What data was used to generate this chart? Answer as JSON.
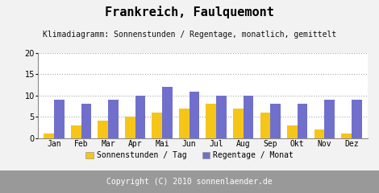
{
  "title": "Frankreich, Faulquemont",
  "subtitle": "Klimadiagramm: Sonnenstunden / Regentage, monatlich, gemittelt",
  "months": [
    "Jan",
    "Feb",
    "Mar",
    "Apr",
    "Mai",
    "Jun",
    "Jul",
    "Aug",
    "Sep",
    "Okt",
    "Nov",
    "Dez"
  ],
  "sonnenstunden": [
    1,
    3,
    4,
    5,
    6,
    7,
    8,
    7,
    6,
    3,
    2,
    1
  ],
  "regentage": [
    9,
    8,
    9,
    10,
    12,
    11,
    10,
    10,
    8,
    8,
    9,
    9
  ],
  "color_sonnen": "#F5C518",
  "color_regen": "#7070CC",
  "ylim": [
    0,
    20
  ],
  "yticks": [
    0,
    5,
    10,
    15,
    20
  ],
  "legend_sonnen": "Sonnenstunden / Tag",
  "legend_regen": "Regentage / Monat",
  "copyright": "Copyright (C) 2010 sonnenlaender.de",
  "bg_color": "#F2F2F2",
  "plot_bg": "#FFFFFF",
  "copyright_bg": "#999999",
  "title_fontsize": 11,
  "subtitle_fontsize": 7,
  "axis_fontsize": 7,
  "legend_fontsize": 7,
  "copyright_fontsize": 7
}
